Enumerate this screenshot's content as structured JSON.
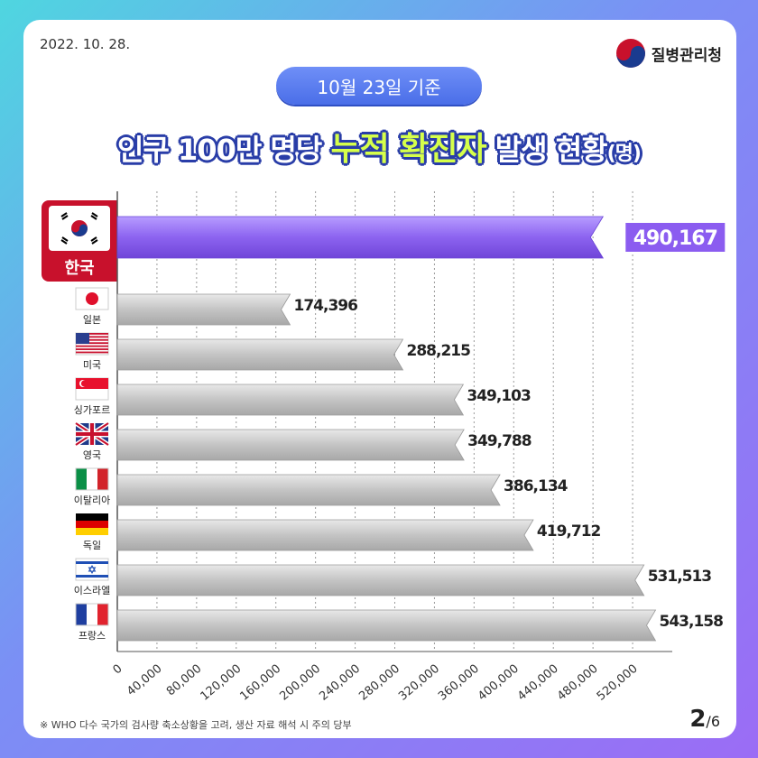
{
  "header": {
    "date": "2022. 10. 28.",
    "agency": "질병관리청",
    "badge": "10월 23일 기준",
    "title_part1": "인구 100만 명당 ",
    "title_highlight": "누적 확진자",
    "title_part2": " 발생 현황",
    "title_unit": "(명)"
  },
  "footer": {
    "note": "※ WHO 다수 국가의 검사량 축소상황을 고려, 생산 자료 해석 시 주의 당부",
    "page_current": "2",
    "page_total": "/6"
  },
  "colors": {
    "highlight_bar": "#8c63f0",
    "bar_gray": "#bdbdbd",
    "korea_red": "#c8112c"
  },
  "chart_data": {
    "type": "bar",
    "orientation": "horizontal",
    "categories": [
      "한국",
      "일본",
      "미국",
      "싱가포르",
      "영국",
      "이탈리아",
      "독일",
      "이스라엘",
      "프랑스"
    ],
    "values": [
      490167,
      174396,
      288215,
      349103,
      349788,
      386134,
      419712,
      531513,
      543158
    ],
    "value_labels": [
      "490,167",
      "174,396",
      "288,215",
      "349,103",
      "349,788",
      "386,134",
      "419,712",
      "531,513",
      "543,158"
    ],
    "flags": [
      "kr-flag-icon",
      "jp-flag-icon",
      "us-flag-icon",
      "sg-flag-icon",
      "gb-flag-icon",
      "it-flag-icon",
      "de-flag-icon",
      "il-flag-icon",
      "fr-flag-icon"
    ],
    "xticks": [
      0,
      40000,
      80000,
      120000,
      160000,
      200000,
      240000,
      280000,
      320000,
      360000,
      400000,
      440000,
      480000,
      520000
    ],
    "xtick_labels": [
      "0",
      "40,000",
      "80,000",
      "120,000",
      "160,000",
      "200,000",
      "240,000",
      "280,000",
      "320,000",
      "360,000",
      "400,000",
      "440,000",
      "480,000",
      "520,000"
    ],
    "xlim": [
      0,
      560000
    ],
    "grid": true,
    "highlight_index": 0
  }
}
